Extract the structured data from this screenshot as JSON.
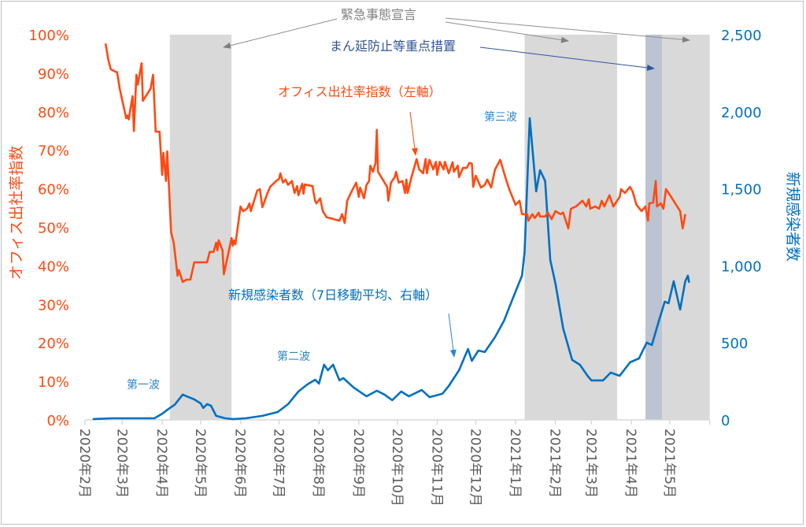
{
  "chart_data": {
    "type": "line",
    "title": "",
    "x_axis": {
      "type": "date",
      "range": [
        "2020-02-01",
        "2021-06-01"
      ],
      "tick_labels": [
        "2020年2月",
        "2020年3月",
        "2020年4月",
        "2020年5月",
        "2020年6月",
        "2020年7月",
        "2020年8月",
        "2020年9月",
        "2020年10月",
        "2020年11月",
        "2020年12月",
        "2021年1月",
        "2021年2月",
        "2021年3月",
        "2021年4月",
        "2021年5月"
      ],
      "tick_dates": [
        "2020-02-01",
        "2020-03-01",
        "2020-04-01",
        "2020-05-01",
        "2020-06-01",
        "2020-07-01",
        "2020-08-01",
        "2020-09-01",
        "2020-10-01",
        "2020-11-01",
        "2020-12-01",
        "2021-01-01",
        "2021-02-01",
        "2021-03-01",
        "2021-04-01",
        "2021-05-01"
      ]
    },
    "y_left": {
      "label": "オフィス出社率指数",
      "range": [
        0,
        100
      ],
      "unit": "%",
      "tick_labels": [
        "0%",
        "10%",
        "20%",
        "30%",
        "40%",
        "50%",
        "60%",
        "70%",
        "80%",
        "90%",
        "100%"
      ],
      "color": "#FF4A12"
    },
    "y_right": {
      "label": "新規感染者数",
      "range": [
        0,
        2500
      ],
      "tick_labels": [
        "0",
        "500",
        "1,000",
        "1,500",
        "2,000",
        "2,500"
      ],
      "color": "#0070C0"
    },
    "grid": false,
    "series": [
      {
        "name": "オフィス出社率指数（左軸）",
        "axis": "left",
        "color": "#FF4A12",
        "points": [
          [
            "2020-02-17",
            97.7
          ],
          [
            "2020-02-19",
            93.7
          ],
          [
            "2020-02-21",
            91
          ],
          [
            "2020-02-26",
            90.2
          ],
          [
            "2020-02-28",
            86
          ],
          [
            "2020-03-04",
            78.3
          ],
          [
            "2020-03-05",
            79
          ],
          [
            "2020-03-06",
            78
          ],
          [
            "2020-03-09",
            84
          ],
          [
            "2020-03-10",
            75
          ],
          [
            "2020-03-12",
            89.6
          ],
          [
            "2020-03-13",
            87
          ],
          [
            "2020-03-16",
            92.6
          ],
          [
            "2020-03-17",
            82.8
          ],
          [
            "2020-03-23",
            86
          ],
          [
            "2020-03-25",
            89.6
          ],
          [
            "2020-03-27",
            74.8
          ],
          [
            "2020-03-30",
            74.8
          ],
          [
            "2020-04-01",
            63.6
          ],
          [
            "2020-04-02",
            69.3
          ],
          [
            "2020-04-04",
            62
          ],
          [
            "2020-04-05",
            69.7
          ],
          [
            "2020-04-08",
            48.7
          ],
          [
            "2020-04-10",
            46
          ],
          [
            "2020-04-13",
            37.4
          ],
          [
            "2020-04-14",
            38.9
          ],
          [
            "2020-04-17",
            35.8
          ],
          [
            "2020-04-20",
            36.4
          ],
          [
            "2020-04-23",
            36.4
          ],
          [
            "2020-04-26",
            40.9
          ],
          [
            "2020-05-06",
            40.9
          ],
          [
            "2020-05-08",
            43.6
          ],
          [
            "2020-05-11",
            43.6
          ],
          [
            "2020-05-13",
            46
          ],
          [
            "2020-05-14",
            44
          ],
          [
            "2020-05-15",
            46.6
          ],
          [
            "2020-05-18",
            44
          ],
          [
            "2020-05-19",
            37.8
          ],
          [
            "2020-05-22",
            42.5
          ],
          [
            "2020-05-25",
            47.2
          ],
          [
            "2020-05-26",
            45.2
          ],
          [
            "2020-05-27",
            46.6
          ],
          [
            "2020-05-28",
            45.6
          ],
          [
            "2020-06-01",
            55.4
          ],
          [
            "2020-06-03",
            54.2
          ],
          [
            "2020-06-06",
            54.8
          ],
          [
            "2020-06-08",
            56.2
          ],
          [
            "2020-06-09",
            54.2
          ],
          [
            "2020-06-14",
            59.5
          ],
          [
            "2020-06-16",
            59.9
          ],
          [
            "2020-06-18",
            55.2
          ],
          [
            "2020-06-22",
            58.9
          ],
          [
            "2020-06-24",
            60.5
          ],
          [
            "2020-06-28",
            61.8
          ],
          [
            "2020-07-01",
            62.6
          ],
          [
            "2020-07-02",
            64
          ],
          [
            "2020-07-04",
            61.6
          ],
          [
            "2020-07-06",
            62.4
          ],
          [
            "2020-07-08",
            61
          ],
          [
            "2020-07-11",
            62
          ],
          [
            "2020-07-13",
            58.9
          ],
          [
            "2020-07-15",
            60.7
          ],
          [
            "2020-07-16",
            58.3
          ],
          [
            "2020-07-19",
            61.3
          ],
          [
            "2020-07-20",
            58.7
          ],
          [
            "2020-07-21",
            61.1
          ],
          [
            "2020-07-27",
            60.7
          ],
          [
            "2020-07-29",
            56.9
          ],
          [
            "2020-07-30",
            56.2
          ],
          [
            "2020-08-02",
            57.5
          ],
          [
            "2020-08-04",
            54.2
          ],
          [
            "2020-08-07",
            52.6
          ],
          [
            "2020-08-17",
            51.7
          ],
          [
            "2020-08-19",
            53.4
          ],
          [
            "2020-08-21",
            51.1
          ],
          [
            "2020-08-23",
            56.9
          ],
          [
            "2020-08-27",
            59.7
          ],
          [
            "2020-08-30",
            61.6
          ],
          [
            "2020-09-01",
            57.9
          ],
          [
            "2020-09-02",
            60.3
          ],
          [
            "2020-09-05",
            57.5
          ],
          [
            "2020-09-07",
            61
          ],
          [
            "2020-09-09",
            62
          ],
          [
            "2020-09-10",
            66
          ],
          [
            "2020-09-12",
            64.4
          ],
          [
            "2020-09-14",
            66.7
          ],
          [
            "2020-09-15",
            75.3
          ],
          [
            "2020-09-16",
            64.4
          ],
          [
            "2020-09-23",
            60.5
          ],
          [
            "2020-09-24",
            56.9
          ],
          [
            "2020-09-26",
            61.6
          ],
          [
            "2020-09-29",
            63
          ],
          [
            "2020-09-30",
            64.4
          ],
          [
            "2020-10-02",
            61.6
          ],
          [
            "2020-10-05",
            62
          ],
          [
            "2020-10-07",
            58.9
          ],
          [
            "2020-10-08",
            62.4
          ],
          [
            "2020-10-09",
            58.9
          ],
          [
            "2020-10-12",
            63
          ],
          [
            "2020-10-16",
            67.7
          ],
          [
            "2020-10-18",
            65
          ],
          [
            "2020-10-21",
            64
          ],
          [
            "2020-10-23",
            67.7
          ],
          [
            "2020-10-24",
            64
          ],
          [
            "2020-10-26",
            67.5
          ],
          [
            "2020-10-29",
            65
          ],
          [
            "2020-10-31",
            67
          ],
          [
            "2020-11-01",
            63.6
          ],
          [
            "2020-11-03",
            67
          ],
          [
            "2020-11-06",
            65
          ],
          [
            "2020-11-07",
            67
          ],
          [
            "2020-11-10",
            64
          ],
          [
            "2020-11-13",
            66.9
          ],
          [
            "2020-11-14",
            64.4
          ],
          [
            "2020-11-17",
            66
          ],
          [
            "2020-11-18",
            63
          ],
          [
            "2020-11-21",
            65.4
          ],
          [
            "2020-11-24",
            65.4
          ],
          [
            "2020-11-26",
            66.7
          ],
          [
            "2020-11-28",
            66.5
          ],
          [
            "2020-11-29",
            60.5
          ],
          [
            "2020-12-01",
            63.4
          ],
          [
            "2020-12-02",
            62.6
          ],
          [
            "2020-12-05",
            60.3
          ],
          [
            "2020-12-08",
            61
          ],
          [
            "2020-12-10",
            62.4
          ],
          [
            "2020-12-13",
            60.3
          ],
          [
            "2020-12-16",
            65
          ],
          [
            "2020-12-20",
            67.5
          ],
          [
            "2020-12-24",
            63
          ],
          [
            "2020-12-27",
            59.9
          ],
          [
            "2021-01-01",
            55.8
          ],
          [
            "2021-01-04",
            56.9
          ],
          [
            "2021-01-06",
            53.4
          ],
          [
            "2021-01-10",
            53.4
          ],
          [
            "2021-01-11",
            51.7
          ],
          [
            "2021-01-14",
            53.4
          ],
          [
            "2021-01-16",
            52.4
          ],
          [
            "2021-01-19",
            53.8
          ],
          [
            "2021-01-20",
            52.8
          ],
          [
            "2021-01-24",
            52.8
          ],
          [
            "2021-01-26",
            53.8
          ],
          [
            "2021-01-29",
            52.1
          ],
          [
            "2021-02-01",
            54.2
          ],
          [
            "2021-02-05",
            53.4
          ],
          [
            "2021-02-07",
            53.8
          ],
          [
            "2021-02-11",
            49.7
          ],
          [
            "2021-02-13",
            54.8
          ],
          [
            "2021-02-17",
            55.4
          ],
          [
            "2021-02-22",
            56.9
          ],
          [
            "2021-02-25",
            55.4
          ],
          [
            "2021-02-27",
            57.3
          ],
          [
            "2021-02-28",
            54.8
          ],
          [
            "2021-03-04",
            55.4
          ],
          [
            "2021-03-07",
            54.8
          ],
          [
            "2021-03-09",
            56.9
          ],
          [
            "2021-03-11",
            55.4
          ],
          [
            "2021-03-15",
            58.3
          ],
          [
            "2021-03-18",
            55.4
          ],
          [
            "2021-03-23",
            57.9
          ],
          [
            "2021-03-24",
            59.9
          ],
          [
            "2021-03-27",
            58.9
          ],
          [
            "2021-03-31",
            60.5
          ],
          [
            "2021-04-02",
            59.3
          ],
          [
            "2021-04-05",
            55.8
          ],
          [
            "2021-04-09",
            54.2
          ],
          [
            "2021-04-12",
            55.4
          ],
          [
            "2021-04-14",
            51.7
          ],
          [
            "2021-04-15",
            56.2
          ],
          [
            "2021-04-18",
            56.4
          ],
          [
            "2021-04-20",
            62
          ],
          [
            "2021-04-21",
            55.4
          ],
          [
            "2021-04-24",
            56.2
          ],
          [
            "2021-04-26",
            54.8
          ],
          [
            "2021-04-28",
            59.9
          ],
          [
            "2021-05-02",
            57.9
          ],
          [
            "2021-05-09",
            54.2
          ],
          [
            "2021-05-11",
            49.7
          ],
          [
            "2021-05-13",
            53.4
          ]
        ]
      },
      {
        "name": "新規感染者数（7日移動平均、右軸）",
        "axis": "right",
        "color": "#0070C0",
        "points": [
          [
            "2020-02-07",
            5
          ],
          [
            "2020-02-22",
            10
          ],
          [
            "2020-03-26",
            10
          ],
          [
            "2020-04-01",
            40
          ],
          [
            "2020-04-07",
            77
          ],
          [
            "2020-04-11",
            100
          ],
          [
            "2020-04-17",
            164
          ],
          [
            "2020-04-20",
            153
          ],
          [
            "2020-04-26",
            133
          ],
          [
            "2020-05-01",
            107
          ],
          [
            "2020-05-03",
            77
          ],
          [
            "2020-05-06",
            102
          ],
          [
            "2020-05-09",
            92
          ],
          [
            "2020-05-13",
            26
          ],
          [
            "2020-05-20",
            10
          ],
          [
            "2020-05-26",
            5
          ],
          [
            "2020-06-05",
            10
          ],
          [
            "2020-06-18",
            26
          ],
          [
            "2020-06-30",
            51
          ],
          [
            "2020-07-08",
            102
          ],
          [
            "2020-07-16",
            184
          ],
          [
            "2020-07-23",
            230
          ],
          [
            "2020-07-29",
            260
          ],
          [
            "2020-08-01",
            235
          ],
          [
            "2020-08-05",
            358
          ],
          [
            "2020-08-08",
            322
          ],
          [
            "2020-08-12",
            358
          ],
          [
            "2020-08-17",
            256
          ],
          [
            "2020-08-20",
            271
          ],
          [
            "2020-08-28",
            210
          ],
          [
            "2020-09-07",
            153
          ],
          [
            "2020-09-15",
            189
          ],
          [
            "2020-09-21",
            164
          ],
          [
            "2020-09-27",
            128
          ],
          [
            "2020-10-04",
            184
          ],
          [
            "2020-10-10",
            153
          ],
          [
            "2020-10-20",
            194
          ],
          [
            "2020-10-26",
            148
          ],
          [
            "2020-11-05",
            169
          ],
          [
            "2020-11-10",
            220
          ],
          [
            "2020-11-18",
            322
          ],
          [
            "2020-11-25",
            460
          ],
          [
            "2020-11-28",
            383
          ],
          [
            "2020-12-03",
            450
          ],
          [
            "2020-12-08",
            440
          ],
          [
            "2020-12-16",
            537
          ],
          [
            "2020-12-23",
            644
          ],
          [
            "2020-12-30",
            792
          ],
          [
            "2021-01-06",
            936
          ],
          [
            "2021-01-08",
            1090
          ],
          [
            "2021-01-12",
            1958
          ],
          [
            "2021-01-17",
            1483
          ],
          [
            "2021-01-20",
            1620
          ],
          [
            "2021-01-24",
            1550
          ],
          [
            "2021-01-28",
            1038
          ],
          [
            "2021-02-01",
            884
          ],
          [
            "2021-02-07",
            593
          ],
          [
            "2021-02-14",
            389
          ],
          [
            "2021-02-20",
            358
          ],
          [
            "2021-02-26",
            286
          ],
          [
            "2021-03-01",
            256
          ],
          [
            "2021-03-10",
            256
          ],
          [
            "2021-03-16",
            307
          ],
          [
            "2021-03-23",
            286
          ],
          [
            "2021-03-31",
            373
          ],
          [
            "2021-04-07",
            399
          ],
          [
            "2021-04-13",
            501
          ],
          [
            "2021-04-17",
            486
          ],
          [
            "2021-04-22",
            629
          ],
          [
            "2021-04-27",
            767
          ],
          [
            "2021-04-30",
            757
          ],
          [
            "2021-05-04",
            900
          ],
          [
            "2021-05-09",
            716
          ],
          [
            "2021-05-13",
            900
          ],
          [
            "2021-05-15",
            936
          ],
          [
            "2021-05-16",
            890
          ]
        ]
      }
    ],
    "shaded_periods": [
      {
        "kind": "emergency",
        "start": "2020-04-07",
        "end": "2020-05-25",
        "color": "#D9D9D9"
      },
      {
        "kind": "emergency",
        "start": "2021-01-08",
        "end": "2021-03-21",
        "color": "#D9D9D9"
      },
      {
        "kind": "manbo",
        "start": "2021-04-12",
        "end": "2021-04-25",
        "color": "#BCC3D1"
      },
      {
        "kind": "emergency",
        "start": "2021-04-25",
        "end": "2021-06-01",
        "color": "#D9D9D9"
      }
    ],
    "annotations": {
      "emergency_label": "緊急事態宣言",
      "manbo_label": "まん延防止等重点措置",
      "office_label": "オフィス出社率指数（左軸）",
      "cases_label": "新規感染者数（7日移動平均、右軸）",
      "wave1": "第一波",
      "wave2": "第二波",
      "wave3": "第三波"
    },
    "colors": {
      "emergency_text": "#7F7F7F",
      "manbo_text": "#2F5597",
      "axis_text": "#595959",
      "axis_line": "#D9D9D9"
    }
  }
}
